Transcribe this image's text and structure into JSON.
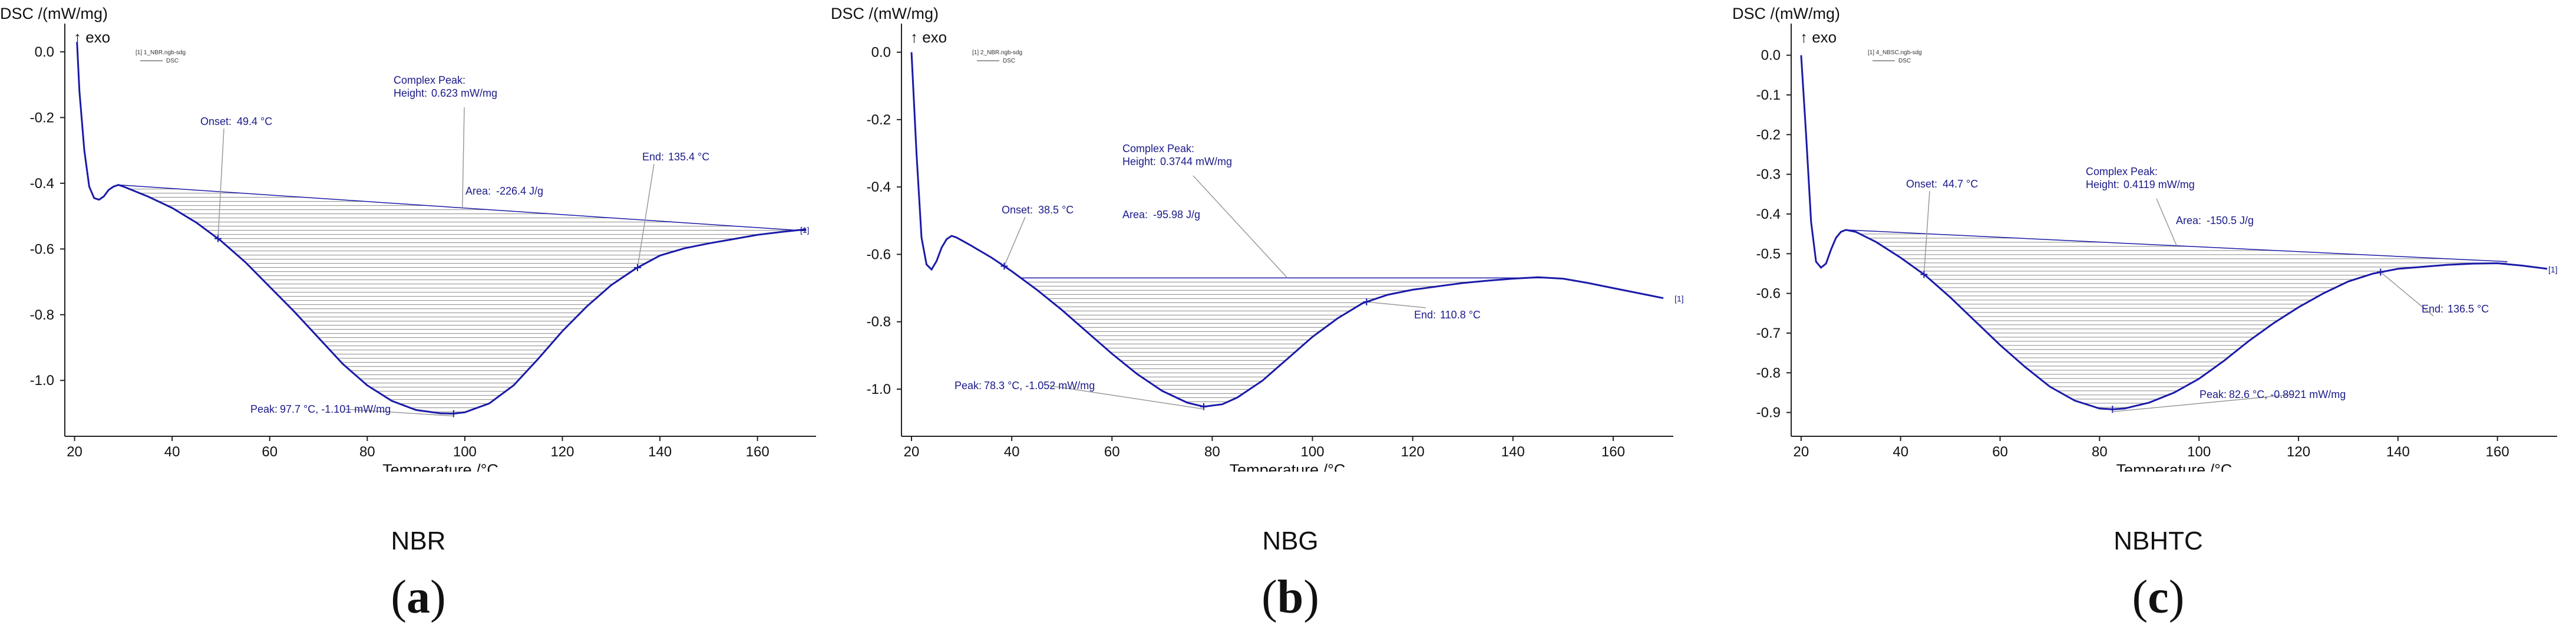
{
  "colors": {
    "curve": "#1a1aa8",
    "annotation": "#1a1a8a",
    "axis": "#222222",
    "hatch": "#8a8a8a",
    "guide": "#9a9a9a"
  },
  "chart_data": [
    {
      "type": "line",
      "panel_label": "NBR",
      "panel_letter": "a",
      "ylabel": "DSC /(mW/mg)",
      "exo": "↑ exo",
      "xlabel": "Temperature /°C",
      "legend": {
        "file": "[1] 1_NBR.ngb-sdg",
        "series": "DSC"
      },
      "xlim": [
        18,
        172
      ],
      "ylim": [
        -1.17,
        0.05
      ],
      "xticks": [
        20,
        40,
        60,
        80,
        100,
        120,
        140,
        160
      ],
      "yticks": [
        0.0,
        -0.2,
        -0.4,
        -0.6,
        -0.8,
        -1.0
      ],
      "ytick_labels": [
        "0.0",
        "-0.2",
        "-0.4",
        "-0.6",
        "-0.8",
        "-1.0"
      ],
      "curve": [
        [
          20.5,
          0.03
        ],
        [
          21,
          -0.12
        ],
        [
          22,
          -0.3
        ],
        [
          23,
          -0.41
        ],
        [
          24,
          -0.445
        ],
        [
          25,
          -0.45
        ],
        [
          26,
          -0.44
        ],
        [
          27,
          -0.42
        ],
        [
          28,
          -0.41
        ],
        [
          29,
          -0.405
        ],
        [
          30,
          -0.41
        ],
        [
          35,
          -0.44
        ],
        [
          40,
          -0.475
        ],
        [
          45,
          -0.52
        ],
        [
          50,
          -0.575
        ],
        [
          55,
          -0.64
        ],
        [
          60,
          -0.715
        ],
        [
          65,
          -0.79
        ],
        [
          70,
          -0.87
        ],
        [
          75,
          -0.95
        ],
        [
          80,
          -1.015
        ],
        [
          85,
          -1.062
        ],
        [
          90,
          -1.09
        ],
        [
          95,
          -1.1
        ],
        [
          97.7,
          -1.101
        ],
        [
          100,
          -1.097
        ],
        [
          105,
          -1.07
        ],
        [
          110,
          -1.015
        ],
        [
          115,
          -0.935
        ],
        [
          120,
          -0.85
        ],
        [
          125,
          -0.775
        ],
        [
          130,
          -0.71
        ],
        [
          135,
          -0.66
        ],
        [
          140,
          -0.62
        ],
        [
          145,
          -0.598
        ],
        [
          150,
          -0.583
        ],
        [
          155,
          -0.57
        ],
        [
          160,
          -0.557
        ],
        [
          165,
          -0.548
        ],
        [
          170,
          -0.54
        ]
      ],
      "baseline": [
        [
          29,
          -0.405
        ],
        [
          170,
          -0.545
        ]
      ],
      "onset": {
        "label": "Onset:",
        "value": "49.4 °C",
        "x": 49.4
      },
      "end": {
        "label": "End:",
        "value": "135.4 °C",
        "x": 135.4
      },
      "peak": {
        "label": "Peak:",
        "value": "97.7 °C, -1.101 mW/mg",
        "x": 97.7,
        "y": -1.101
      },
      "area": {
        "label": "Area:",
        "value": "-226.4 J/g"
      },
      "complex_peak": {
        "title": "Complex Peak:",
        "height_label": "Height:",
        "height_value": "0.623 mW/mg"
      },
      "series_tag": "[1]"
    },
    {
      "type": "line",
      "panel_label": "NBG",
      "panel_letter": "b",
      "ylabel": "DSC /(mW/mg)",
      "exo": "↑ exo",
      "xlabel": "Temperature /°C",
      "legend": {
        "file": "[1] 2_NBR.ngb-sdg",
        "series": "DSC"
      },
      "xlim": [
        18,
        172
      ],
      "ylim": [
        -1.14,
        0.05
      ],
      "xticks": [
        20,
        40,
        60,
        80,
        100,
        120,
        140,
        160
      ],
      "yticks": [
        0.0,
        -0.2,
        -0.4,
        -0.6,
        -0.8,
        -1.0
      ],
      "ytick_labels": [
        "0.0",
        "-0.2",
        "-0.4",
        "-0.6",
        "-0.8",
        "-1.0"
      ],
      "curve": [
        [
          20,
          0.0
        ],
        [
          21,
          -0.3
        ],
        [
          22,
          -0.55
        ],
        [
          23,
          -0.63
        ],
        [
          24,
          -0.645
        ],
        [
          25,
          -0.62
        ],
        [
          26,
          -0.58
        ],
        [
          27,
          -0.555
        ],
        [
          28,
          -0.545
        ],
        [
          29,
          -0.55
        ],
        [
          32,
          -0.575
        ],
        [
          36,
          -0.61
        ],
        [
          40,
          -0.65
        ],
        [
          45,
          -0.705
        ],
        [
          50,
          -0.765
        ],
        [
          55,
          -0.83
        ],
        [
          60,
          -0.895
        ],
        [
          65,
          -0.955
        ],
        [
          70,
          -1.005
        ],
        [
          75,
          -1.04
        ],
        [
          78.3,
          -1.052
        ],
        [
          82,
          -1.045
        ],
        [
          85,
          -1.025
        ],
        [
          90,
          -0.975
        ],
        [
          95,
          -0.91
        ],
        [
          100,
          -0.845
        ],
        [
          105,
          -0.79
        ],
        [
          110,
          -0.745
        ],
        [
          115,
          -0.72
        ],
        [
          120,
          -0.705
        ],
        [
          125,
          -0.695
        ],
        [
          130,
          -0.685
        ],
        [
          135,
          -0.678
        ],
        [
          140,
          -0.672
        ],
        [
          145,
          -0.668
        ],
        [
          150,
          -0.672
        ],
        [
          155,
          -0.685
        ],
        [
          160,
          -0.7
        ],
        [
          165,
          -0.715
        ],
        [
          170,
          -0.73
        ]
      ],
      "baseline": [
        [
          42,
          -0.67
        ],
        [
          148,
          -0.67
        ]
      ],
      "onset": {
        "label": "Onset:",
        "value": "38.5 °C",
        "x": 38.5
      },
      "end": {
        "label": "End:",
        "value": "110.8 °C",
        "x": 110.8
      },
      "peak": {
        "label": "Peak:",
        "value": "78.3 °C, -1.052 mW/mg",
        "x": 78.3,
        "y": -1.052
      },
      "area": {
        "label": "Area:",
        "value": "-95.98 J/g"
      },
      "complex_peak": {
        "title": "Complex Peak:",
        "height_label": "Height:",
        "height_value": "0.3744 mW/mg"
      },
      "series_tag": "[1]"
    },
    {
      "type": "line",
      "panel_label": "NBHTC",
      "panel_letter": "c",
      "ylabel": "DSC /(mW/mg)",
      "exo": "↑ exo",
      "xlabel": "Temperature /°C",
      "legend": {
        "file": "[1] 4_NBSC.ngb-sdg",
        "series": "DSC"
      },
      "xlim": [
        18,
        172
      ],
      "ylim": [
        -0.96,
        0.05
      ],
      "xticks": [
        20,
        40,
        60,
        80,
        100,
        120,
        140,
        160
      ],
      "yticks": [
        0.0,
        -0.1,
        -0.2,
        -0.3,
        -0.4,
        -0.5,
        -0.6,
        -0.7,
        -0.8,
        -0.9
      ],
      "ytick_labels": [
        "0.0",
        "-0.1",
        "-0.2",
        "-0.3",
        "-0.4",
        "-0.5",
        "-0.6",
        "-0.7",
        "-0.8",
        "-0.9"
      ],
      "curve": [
        [
          20,
          0.0
        ],
        [
          21,
          -0.2
        ],
        [
          22,
          -0.42
        ],
        [
          23,
          -0.52
        ],
        [
          24,
          -0.535
        ],
        [
          25,
          -0.525
        ],
        [
          26,
          -0.49
        ],
        [
          27,
          -0.46
        ],
        [
          28,
          -0.445
        ],
        [
          29,
          -0.44
        ],
        [
          31,
          -0.445
        ],
        [
          35,
          -0.47
        ],
        [
          40,
          -0.51
        ],
        [
          45,
          -0.555
        ],
        [
          50,
          -0.61
        ],
        [
          55,
          -0.67
        ],
        [
          60,
          -0.73
        ],
        [
          65,
          -0.785
        ],
        [
          70,
          -0.835
        ],
        [
          75,
          -0.87
        ],
        [
          80,
          -0.89
        ],
        [
          82.6,
          -0.892
        ],
        [
          85,
          -0.89
        ],
        [
          90,
          -0.875
        ],
        [
          95,
          -0.85
        ],
        [
          100,
          -0.815
        ],
        [
          105,
          -0.77
        ],
        [
          110,
          -0.72
        ],
        [
          115,
          -0.675
        ],
        [
          120,
          -0.635
        ],
        [
          125,
          -0.6
        ],
        [
          130,
          -0.57
        ],
        [
          135,
          -0.55
        ],
        [
          140,
          -0.538
        ],
        [
          145,
          -0.533
        ],
        [
          150,
          -0.528
        ],
        [
          155,
          -0.525
        ],
        [
          160,
          -0.524
        ],
        [
          165,
          -0.53
        ],
        [
          170,
          -0.538
        ]
      ],
      "baseline": [
        [
          29,
          -0.44
        ],
        [
          162,
          -0.52
        ]
      ],
      "onset": {
        "label": "Onset:",
        "value": "44.7 °C",
        "x": 44.7
      },
      "end": {
        "label": "End:",
        "value": "136.5 °C",
        "x": 136.5
      },
      "peak": {
        "label": "Peak:",
        "value": "82.6 °C, -0.8921 mW/mg",
        "x": 82.6,
        "y": -0.8921
      },
      "area": {
        "label": "Area:",
        "value": "-150.5 J/g"
      },
      "complex_peak": {
        "title": "Complex Peak:",
        "height_label": "Height:",
        "height_value": "0.4119 mW/mg"
      },
      "series_tag": "[1]"
    }
  ]
}
